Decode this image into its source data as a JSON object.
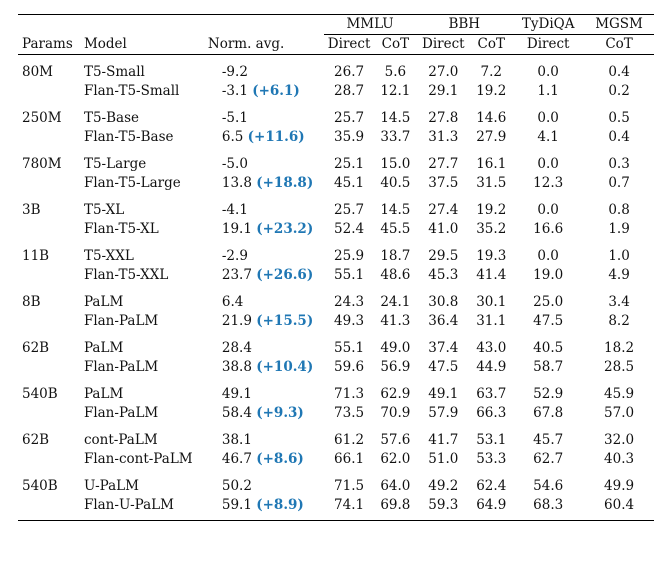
{
  "columns": {
    "params": "Params",
    "model": "Model",
    "norm_avg": "Norm. avg.",
    "groups": [
      {
        "label": "MMLU",
        "span": 2
      },
      {
        "label": "BBH",
        "span": 2
      },
      {
        "label": "TyDiQA",
        "span": 1
      },
      {
        "label": "MGSM",
        "span": 1
      }
    ],
    "subs": [
      "Direct",
      "CoT",
      "Direct",
      "CoT",
      "Direct",
      "CoT"
    ]
  },
  "groups": [
    {
      "params": "80M",
      "rows": [
        {
          "model": "T5-Small",
          "norm": "-9.2",
          "gain": "",
          "vals": [
            "26.7",
            "5.6",
            "27.0",
            "7.2",
            "0.0",
            "0.4"
          ]
        },
        {
          "model": "Flan-T5-Small",
          "norm": "-3.1",
          "gain": "(+6.1)",
          "vals": [
            "28.7",
            "12.1",
            "29.1",
            "19.2",
            "1.1",
            "0.2"
          ]
        }
      ]
    },
    {
      "params": "250M",
      "rows": [
        {
          "model": "T5-Base",
          "norm": "-5.1",
          "gain": "",
          "vals": [
            "25.7",
            "14.5",
            "27.8",
            "14.6",
            "0.0",
            "0.5"
          ]
        },
        {
          "model": "Flan-T5-Base",
          "norm": "6.5",
          "gain": "(+11.6)",
          "vals": [
            "35.9",
            "33.7",
            "31.3",
            "27.9",
            "4.1",
            "0.4"
          ]
        }
      ]
    },
    {
      "params": "780M",
      "rows": [
        {
          "model": "T5-Large",
          "norm": "-5.0",
          "gain": "",
          "vals": [
            "25.1",
            "15.0",
            "27.7",
            "16.1",
            "0.0",
            "0.3"
          ]
        },
        {
          "model": "Flan-T5-Large",
          "norm": "13.8",
          "gain": "(+18.8)",
          "vals": [
            "45.1",
            "40.5",
            "37.5",
            "31.5",
            "12.3",
            "0.7"
          ]
        }
      ]
    },
    {
      "params": "3B",
      "rows": [
        {
          "model": "T5-XL",
          "norm": "-4.1",
          "gain": "",
          "vals": [
            "25.7",
            "14.5",
            "27.4",
            "19.2",
            "0.0",
            "0.8"
          ]
        },
        {
          "model": "Flan-T5-XL",
          "norm": "19.1",
          "gain": "(+23.2)",
          "vals": [
            "52.4",
            "45.5",
            "41.0",
            "35.2",
            "16.6",
            "1.9"
          ]
        }
      ]
    },
    {
      "params": "11B",
      "rows": [
        {
          "model": "T5-XXL",
          "norm": "-2.9",
          "gain": "",
          "vals": [
            "25.9",
            "18.7",
            "29.5",
            "19.3",
            "0.0",
            "1.0"
          ]
        },
        {
          "model": "Flan-T5-XXL",
          "norm": "23.7",
          "gain": "(+26.6)",
          "vals": [
            "55.1",
            "48.6",
            "45.3",
            "41.4",
            "19.0",
            "4.9"
          ]
        }
      ]
    },
    {
      "params": "8B",
      "rows": [
        {
          "model": "PaLM",
          "norm": "6.4",
          "gain": "",
          "vals": [
            "24.3",
            "24.1",
            "30.8",
            "30.1",
            "25.0",
            "3.4"
          ]
        },
        {
          "model": "Flan-PaLM",
          "norm": "21.9",
          "gain": "(+15.5)",
          "vals": [
            "49.3",
            "41.3",
            "36.4",
            "31.1",
            "47.5",
            "8.2"
          ]
        }
      ]
    },
    {
      "params": "62B",
      "rows": [
        {
          "model": "PaLM",
          "norm": "28.4",
          "gain": "",
          "vals": [
            "55.1",
            "49.0",
            "37.4",
            "43.0",
            "40.5",
            "18.2"
          ]
        },
        {
          "model": "Flan-PaLM",
          "norm": "38.8",
          "gain": "(+10.4)",
          "vals": [
            "59.6",
            "56.9",
            "47.5",
            "44.9",
            "58.7",
            "28.5"
          ]
        }
      ]
    },
    {
      "params": "540B",
      "rows": [
        {
          "model": "PaLM",
          "norm": "49.1",
          "gain": "",
          "vals": [
            "71.3",
            "62.9",
            "49.1",
            "63.7",
            "52.9",
            "45.9"
          ]
        },
        {
          "model": "Flan-PaLM",
          "norm": "58.4",
          "gain": "(+9.3)",
          "vals": [
            "73.5",
            "70.9",
            "57.9",
            "66.3",
            "67.8",
            "57.0"
          ]
        }
      ]
    },
    {
      "params": "62B",
      "rows": [
        {
          "model": "cont-PaLM",
          "norm": "38.1",
          "gain": "",
          "vals": [
            "61.2",
            "57.6",
            "41.7",
            "53.1",
            "45.7",
            "32.0"
          ]
        },
        {
          "model": "Flan-cont-PaLM",
          "norm": "46.7",
          "gain": "(+8.6)",
          "vals": [
            "66.1",
            "62.0",
            "51.0",
            "53.3",
            "62.7",
            "40.3"
          ]
        }
      ]
    },
    {
      "params": "540B",
      "rows": [
        {
          "model": "U-PaLM",
          "norm": "50.2",
          "gain": "",
          "vals": [
            "71.5",
            "64.0",
            "49.2",
            "62.4",
            "54.6",
            "49.9"
          ]
        },
        {
          "model": "Flan-U-PaLM",
          "norm": "59.1",
          "gain": "(+8.9)",
          "vals": [
            "74.1",
            "69.8",
            "59.3",
            "64.9",
            "68.3",
            "60.4"
          ]
        }
      ]
    }
  ]
}
